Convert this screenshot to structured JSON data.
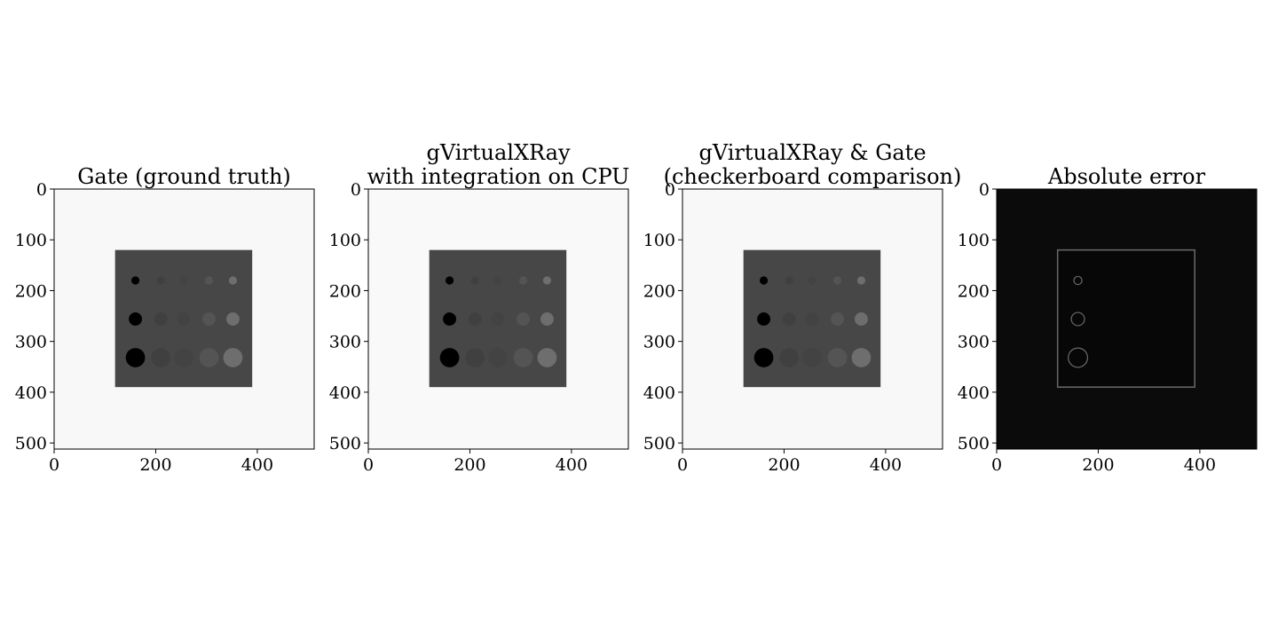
{
  "chart_data": [
    {
      "type": "heatmap",
      "title_lines": [
        "Gate (ground truth)"
      ],
      "image_kind": "phantom",
      "background_color": "#f8f8f8",
      "insert_color": "#474747",
      "xlim": [
        0,
        512
      ],
      "ylim": [
        512,
        0
      ],
      "x_ticks": [
        0,
        200,
        400
      ],
      "y_ticks": [
        0,
        100,
        200,
        300,
        400,
        500
      ],
      "x_tick_labels": [
        "0",
        "200",
        "400"
      ],
      "y_tick_labels": [
        "0",
        "100",
        "200",
        "300",
        "400",
        "500"
      ],
      "insert": {
        "x0": 120,
        "x1": 390,
        "y0": 120,
        "y1": 390
      },
      "rows": [
        {
          "y": 180,
          "radius": 8
        },
        {
          "y": 256,
          "radius": 13
        },
        {
          "y": 332,
          "radius": 19
        }
      ],
      "columns": [
        {
          "x": 160,
          "color": "#000000"
        },
        {
          "x": 210,
          "color": "#404040"
        },
        {
          "x": 255,
          "color": "#434343"
        },
        {
          "x": 305,
          "color": "#545454"
        },
        {
          "x": 352,
          "color": "#6e6e6e"
        }
      ]
    },
    {
      "type": "heatmap",
      "title_lines": [
        "gVirtualXRay",
        "with integration on CPU"
      ],
      "image_kind": "phantom",
      "background_color": "#f9f9f9",
      "insert_color": "#474747",
      "xlim": [
        0,
        512
      ],
      "ylim": [
        512,
        0
      ],
      "x_ticks": [
        0,
        200,
        400
      ],
      "y_ticks": [
        0,
        100,
        200,
        300,
        400,
        500
      ],
      "x_tick_labels": [
        "0",
        "200",
        "400"
      ],
      "y_tick_labels": [
        "0",
        "100",
        "200",
        "300",
        "400",
        "500"
      ],
      "insert": {
        "x0": 120,
        "x1": 390,
        "y0": 120,
        "y1": 390
      },
      "rows": [
        {
          "y": 180,
          "radius": 8
        },
        {
          "y": 256,
          "radius": 13
        },
        {
          "y": 332,
          "radius": 19
        }
      ],
      "columns": [
        {
          "x": 160,
          "color": "#000000"
        },
        {
          "x": 210,
          "color": "#404040"
        },
        {
          "x": 255,
          "color": "#434343"
        },
        {
          "x": 305,
          "color": "#545454"
        },
        {
          "x": 352,
          "color": "#6e6e6e"
        }
      ]
    },
    {
      "type": "heatmap",
      "title_lines": [
        "gVirtualXRay & Gate",
        "(checkerboard comparison)"
      ],
      "image_kind": "phantom",
      "background_color": "#f8f8f8",
      "insert_color": "#474747",
      "xlim": [
        0,
        512
      ],
      "ylim": [
        512,
        0
      ],
      "x_ticks": [
        0,
        200,
        400
      ],
      "y_ticks": [
        0,
        100,
        200,
        300,
        400,
        500
      ],
      "x_tick_labels": [
        "0",
        "200",
        "400"
      ],
      "y_tick_labels": [
        "0",
        "100",
        "200",
        "300",
        "400",
        "500"
      ],
      "insert": {
        "x0": 120,
        "x1": 390,
        "y0": 120,
        "y1": 390
      },
      "rows": [
        {
          "y": 180,
          "radius": 8
        },
        {
          "y": 256,
          "radius": 13
        },
        {
          "y": 332,
          "radius": 19
        }
      ],
      "columns": [
        {
          "x": 160,
          "color": "#000000"
        },
        {
          "x": 210,
          "color": "#404040"
        },
        {
          "x": 255,
          "color": "#434343"
        },
        {
          "x": 305,
          "color": "#545454"
        },
        {
          "x": 352,
          "color": "#6e6e6e"
        }
      ]
    },
    {
      "type": "heatmap",
      "title_lines": [
        "Absolute error"
      ],
      "image_kind": "error",
      "background_color": "#0b0b0b",
      "insert_color": "#070707",
      "outline_color": "#6a6a6a",
      "xlim": [
        0,
        512
      ],
      "ylim": [
        512,
        0
      ],
      "x_ticks": [
        0,
        200,
        400
      ],
      "y_ticks": [
        0,
        100,
        200,
        300,
        400,
        500
      ],
      "x_tick_labels": [
        "0",
        "200",
        "400"
      ],
      "y_tick_labels": [
        "0",
        "100",
        "200",
        "300",
        "400",
        "500"
      ],
      "insert": {
        "x0": 120,
        "x1": 390,
        "y0": 120,
        "y1": 390
      },
      "rings": [
        {
          "x": 160,
          "y": 180,
          "radius": 8
        },
        {
          "x": 160,
          "y": 256,
          "radius": 13
        },
        {
          "x": 160,
          "y": 332,
          "radius": 19
        }
      ]
    }
  ]
}
